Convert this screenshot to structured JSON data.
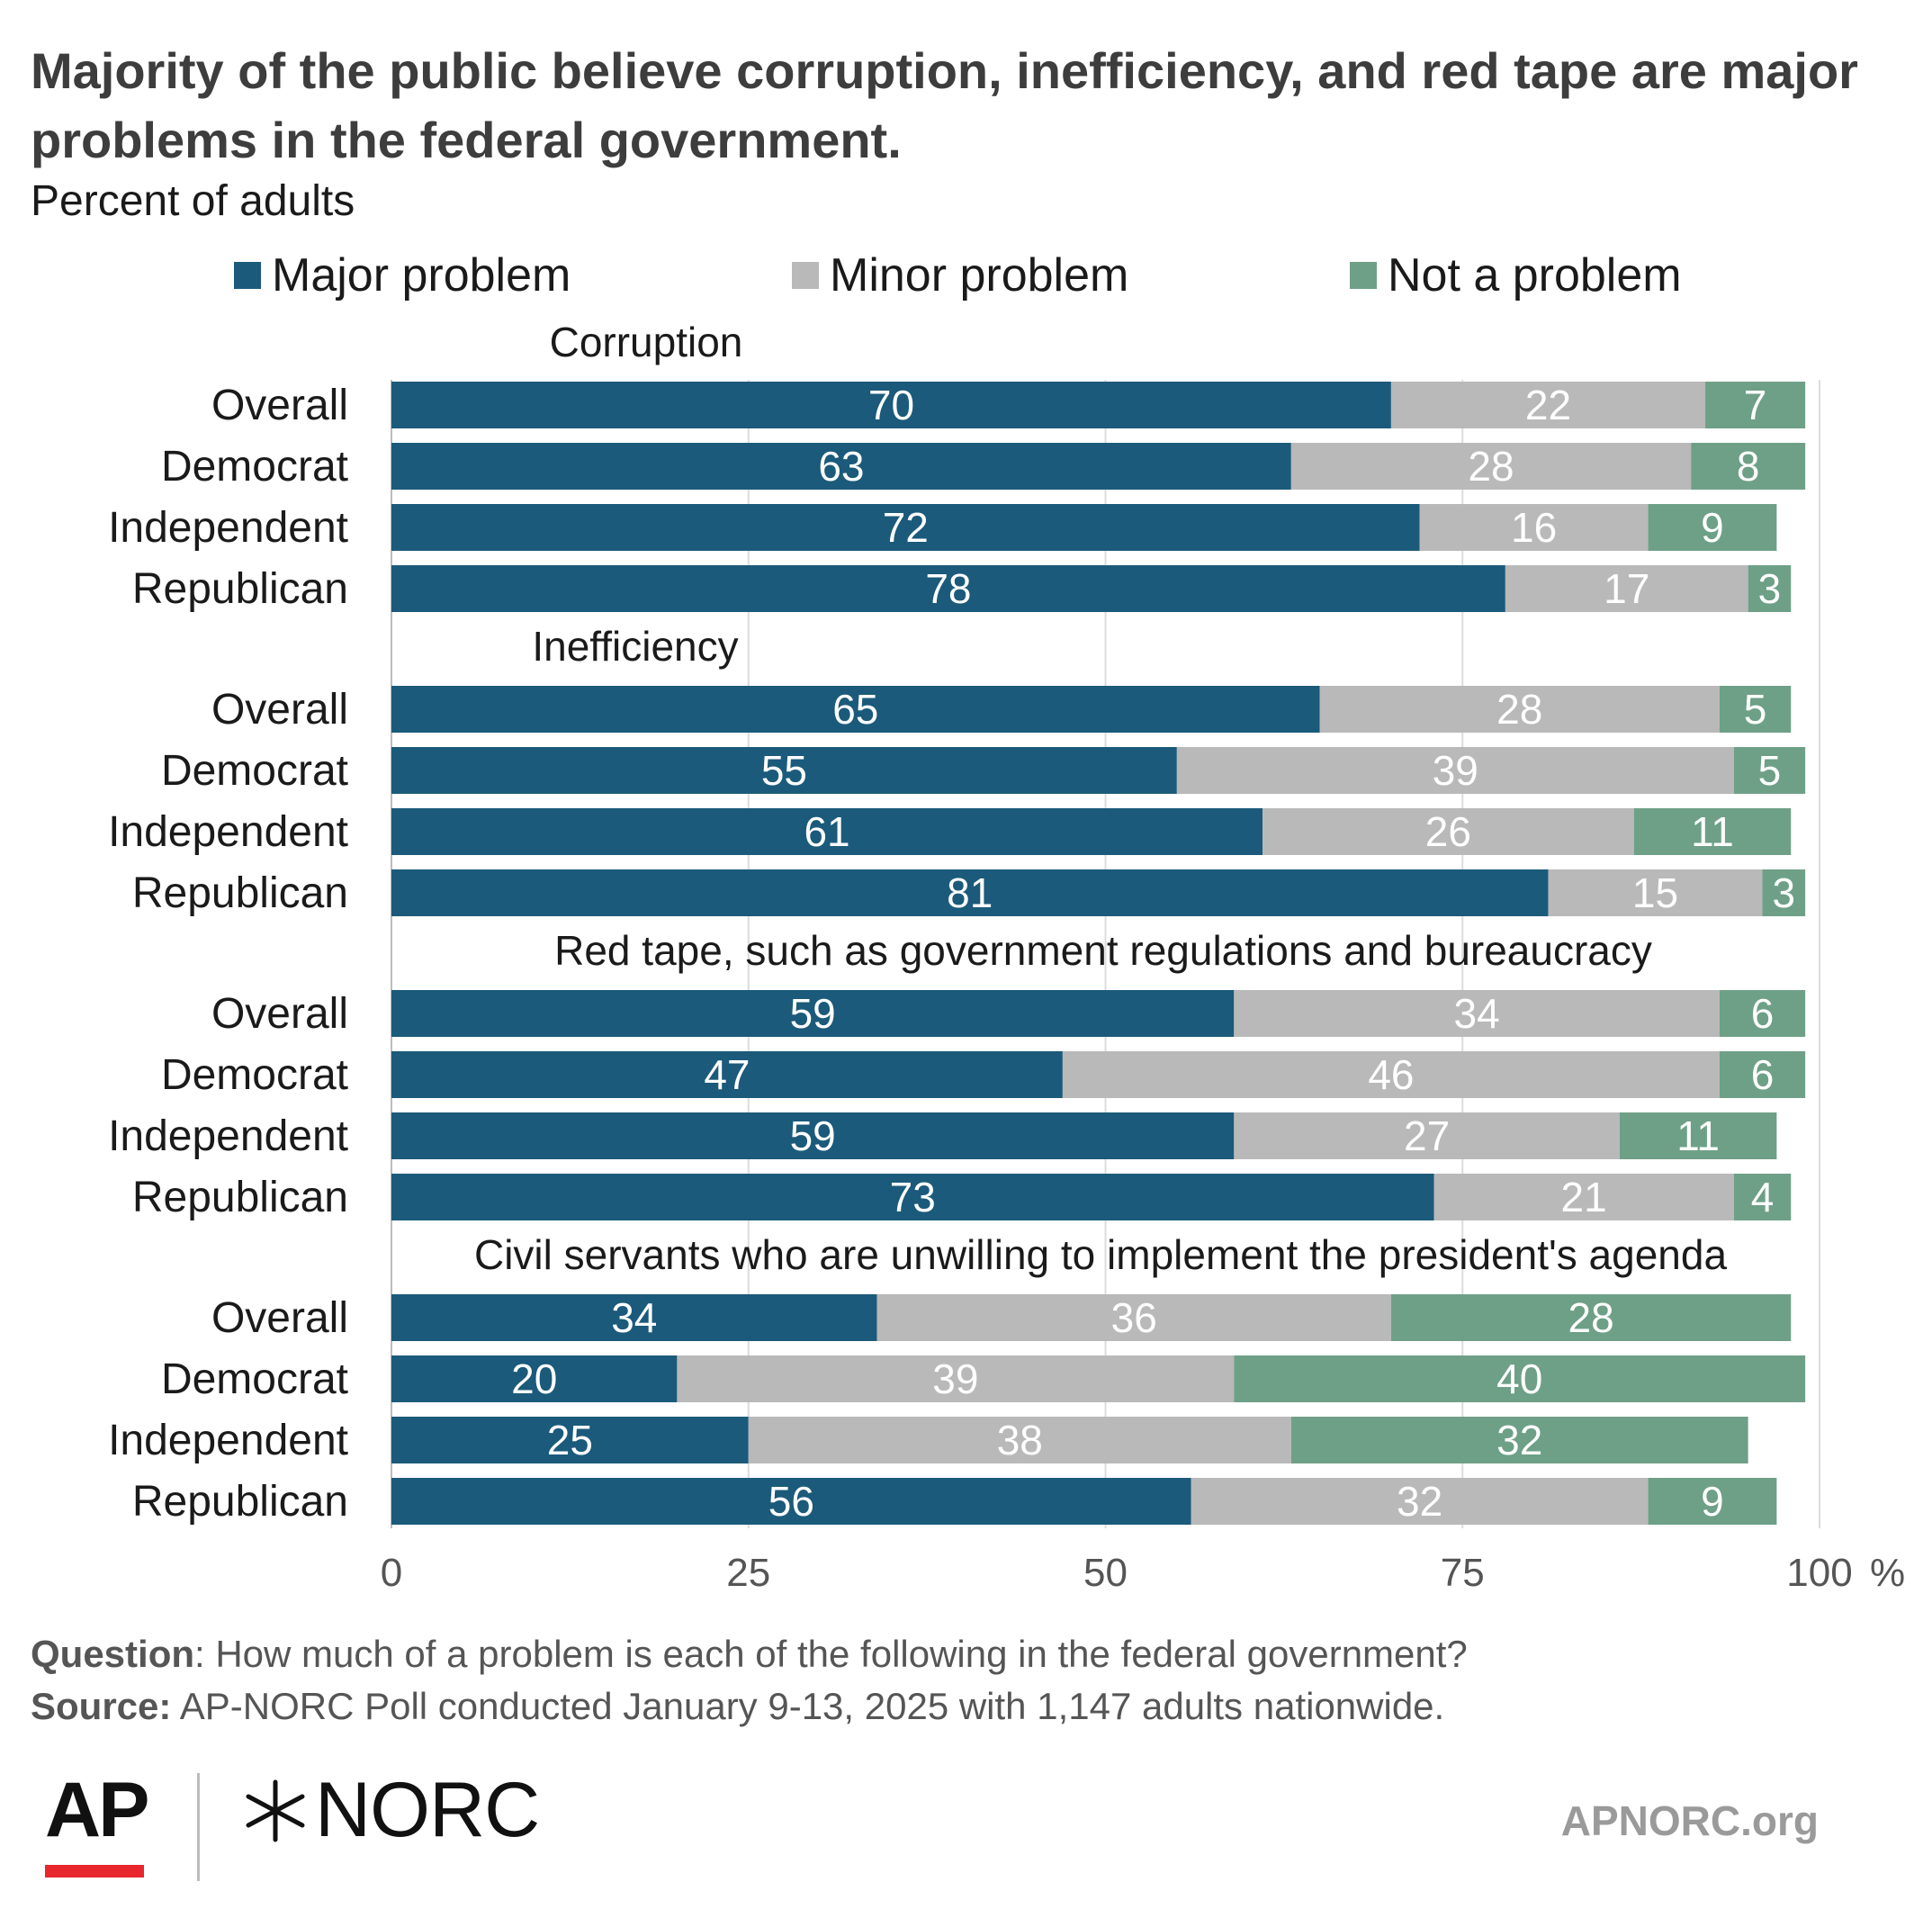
{
  "title": "Majority of the public believe corruption, inefficiency, and red tape are major problems in the federal government.",
  "subtitle": "Percent of adults",
  "legend": [
    {
      "label": "Major problem",
      "color": "#1b5a7a"
    },
    {
      "label": "Minor problem",
      "color": "#b9b9b9"
    },
    {
      "label": "Not a problem",
      "color": "#6ea087"
    }
  ],
  "chart_data": {
    "type": "bar",
    "orientation": "horizontal",
    "stacked": true,
    "xlim": [
      0,
      100
    ],
    "x_ticks": [
      "0",
      "25",
      "50",
      "75",
      "100"
    ],
    "x_unit": "%",
    "grid": true,
    "legend_position": "top",
    "series_names": [
      "Major problem",
      "Minor problem",
      "Not a problem"
    ],
    "series_colors": [
      "#1b5a7a",
      "#b9b9b9",
      "#6ea087"
    ],
    "groups": [
      {
        "title": "Corruption",
        "rows": [
          {
            "label": "Overall",
            "values": [
              70,
              22,
              7
            ]
          },
          {
            "label": "Democrat",
            "values": [
              63,
              28,
              8
            ]
          },
          {
            "label": "Independent",
            "values": [
              72,
              16,
              9
            ]
          },
          {
            "label": "Republican",
            "values": [
              78,
              17,
              3
            ]
          }
        ]
      },
      {
        "title": "Inefficiency",
        "rows": [
          {
            "label": "Overall",
            "values": [
              65,
              28,
              5
            ]
          },
          {
            "label": "Democrat",
            "values": [
              55,
              39,
              5
            ]
          },
          {
            "label": "Independent",
            "values": [
              61,
              26,
              11
            ]
          },
          {
            "label": "Republican",
            "values": [
              81,
              15,
              3
            ]
          }
        ]
      },
      {
        "title": "Red tape, such as government regulations and bureaucracy",
        "rows": [
          {
            "label": "Overall",
            "values": [
              59,
              34,
              6
            ]
          },
          {
            "label": "Democrat",
            "values": [
              47,
              46,
              6
            ]
          },
          {
            "label": "Independent",
            "values": [
              59,
              27,
              11
            ]
          },
          {
            "label": "Republican",
            "values": [
              73,
              21,
              4
            ]
          }
        ]
      },
      {
        "title": "Civil servants who are unwilling to implement the president's agenda",
        "rows": [
          {
            "label": "Overall",
            "values": [
              34,
              36,
              28
            ]
          },
          {
            "label": "Democrat",
            "values": [
              20,
              39,
              40
            ]
          },
          {
            "label": "Independent",
            "values": [
              25,
              38,
              32
            ]
          },
          {
            "label": "Republican",
            "values": [
              56,
              32,
              9
            ]
          }
        ]
      }
    ]
  },
  "footer": {
    "question_label": "Question",
    "question_text": ": How much of a problem is each of the following in the federal government?",
    "source_label": "Source:",
    "source_text": " AP-NORC Poll conducted January 9-13, 2025 with 1,147 adults nationwide."
  },
  "logos": {
    "ap": "AP",
    "norc": "NORC",
    "ap_bar_color": "#e8262d"
  },
  "website": "APNORC.org"
}
